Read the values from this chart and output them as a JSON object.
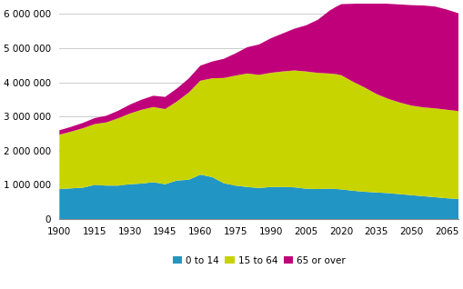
{
  "years": [
    1900,
    1905,
    1910,
    1915,
    1920,
    1925,
    1930,
    1935,
    1940,
    1945,
    1950,
    1955,
    1960,
    1965,
    1970,
    1975,
    1980,
    1985,
    1990,
    1995,
    2000,
    2005,
    2010,
    2015,
    2018,
    2020,
    2025,
    2030,
    2035,
    2040,
    2045,
    2050,
    2055,
    2060,
    2065,
    2070
  ],
  "age_0_14": [
    880000,
    900000,
    920000,
    1000000,
    980000,
    980000,
    1020000,
    1040000,
    1080000,
    1020000,
    1130000,
    1150000,
    1300000,
    1230000,
    1050000,
    980000,
    940000,
    910000,
    940000,
    940000,
    930000,
    890000,
    880000,
    890000,
    880000,
    870000,
    830000,
    800000,
    780000,
    760000,
    730000,
    700000,
    670000,
    640000,
    610000,
    590000
  ],
  "age_15_64": [
    1590000,
    1660000,
    1740000,
    1780000,
    1850000,
    1970000,
    2070000,
    2160000,
    2200000,
    2200000,
    2310000,
    2550000,
    2750000,
    2890000,
    3080000,
    3220000,
    3320000,
    3310000,
    3340000,
    3380000,
    3420000,
    3430000,
    3400000,
    3370000,
    3360000,
    3340000,
    3190000,
    3050000,
    2880000,
    2760000,
    2680000,
    2620000,
    2600000,
    2600000,
    2590000,
    2570000
  ],
  "age_65_over": [
    130000,
    140000,
    155000,
    175000,
    195000,
    220000,
    260000,
    295000,
    330000,
    355000,
    380000,
    410000,
    440000,
    490000,
    560000,
    650000,
    770000,
    890000,
    1010000,
    1110000,
    1220000,
    1350000,
    1550000,
    1840000,
    1980000,
    2080000,
    2280000,
    2470000,
    2660000,
    2780000,
    2870000,
    2940000,
    2980000,
    2980000,
    2930000,
    2860000
  ],
  "color_0_14": "#2196c4",
  "color_15_64": "#c8d400",
  "color_65_over": "#c0007a",
  "ylabel_values": [
    0,
    1000000,
    2000000,
    3000000,
    4000000,
    5000000,
    6000000
  ],
  "ylabel_labels": [
    "0",
    "1 000 000",
    "2 000 000",
    "3 000 000",
    "4 000 000",
    "5 000 000",
    "6 000 000"
  ],
  "xtick_years": [
    1900,
    1915,
    1930,
    1945,
    1960,
    1975,
    1990,
    2005,
    2020,
    2035,
    2050,
    2065
  ],
  "legend_labels": [
    "0 to 14",
    "15 to 64",
    "65 or over"
  ],
  "ylim": [
    0,
    6300000
  ],
  "xlim": [
    1900,
    2070
  ]
}
